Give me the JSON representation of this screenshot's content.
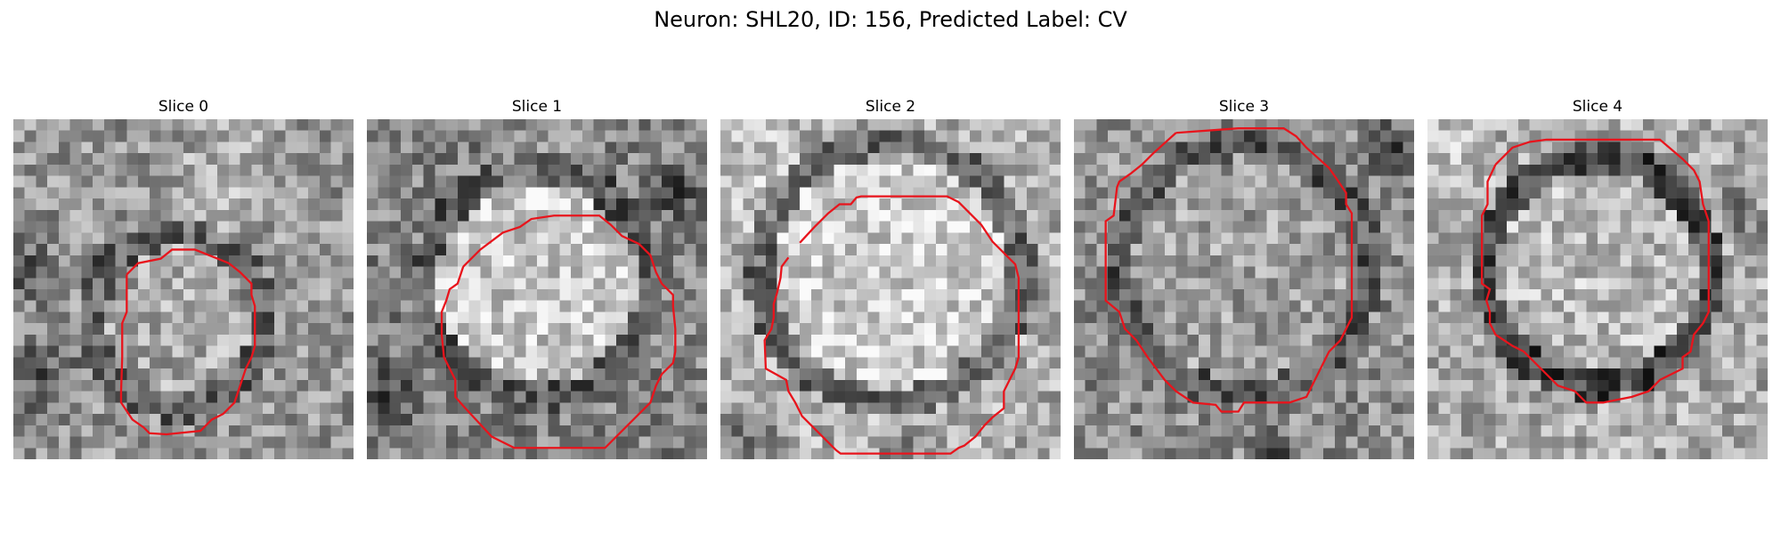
{
  "figure": {
    "title": "Neuron: SHL20, ID: 156, Predicted Label: CV"
  },
  "panels": [
    {
      "title": "Slice 0"
    },
    {
      "title": "Slice 1"
    },
    {
      "title": "Slice 2"
    },
    {
      "title": "Slice 3"
    },
    {
      "title": "Slice 4"
    }
  ],
  "colors": {
    "contour": "#e8141c",
    "colormap": "gray"
  }
}
